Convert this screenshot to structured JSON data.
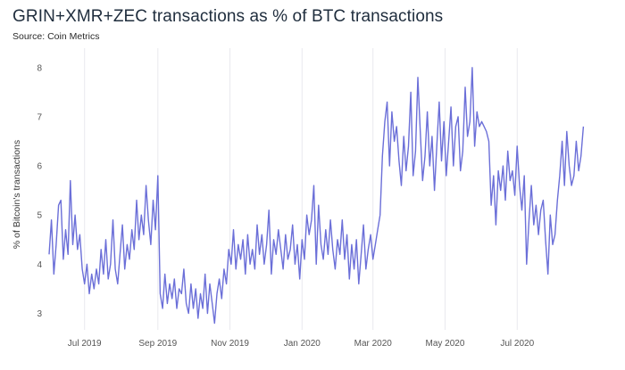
{
  "title": "GRIN+XMR+ZEC transactions as % of BTC transactions",
  "subtitle": "Source: Coin Metrics",
  "colors": {
    "series": "#6b6fd8",
    "grid": "#e9e9ee",
    "text": "#1f2d3d"
  },
  "chart_data": {
    "type": "line",
    "title": "GRIN+XMR+ZEC transactions as % of BTC transactions",
    "xlabel": "",
    "ylabel": "% of Bitcoin's transactions",
    "xlim": [
      "2019-06-01",
      "2020-08-31"
    ],
    "ylim": [
      2.7,
      8.25
    ],
    "yticks": [
      3,
      4,
      5,
      6,
      7,
      8
    ],
    "xticks": [
      {
        "date": "2019-07-01",
        "label": "Jul 2019"
      },
      {
        "date": "2019-09-01",
        "label": "Sep 2019"
      },
      {
        "date": "2019-11-01",
        "label": "Nov 2019"
      },
      {
        "date": "2020-01-01",
        "label": "Jan 2020"
      },
      {
        "date": "2020-03-01",
        "label": "Mar 2020"
      },
      {
        "date": "2020-05-01",
        "label": "May 2020"
      },
      {
        "date": "2020-07-01",
        "label": "Jul 2020"
      }
    ],
    "grid": "vertical",
    "series": [
      {
        "x": [
          "2019-06-01",
          "2019-06-03",
          "2019-06-05",
          "2019-06-07",
          "2019-06-09",
          "2019-06-11",
          "2019-06-13",
          "2019-06-15",
          "2019-06-17",
          "2019-06-19",
          "2019-06-21",
          "2019-06-23",
          "2019-06-25",
          "2019-06-27",
          "2019-06-29",
          "2019-07-01",
          "2019-07-03",
          "2019-07-05",
          "2019-07-07",
          "2019-07-09",
          "2019-07-11",
          "2019-07-13",
          "2019-07-15",
          "2019-07-17",
          "2019-07-19",
          "2019-07-21",
          "2019-07-23",
          "2019-07-25",
          "2019-07-27",
          "2019-07-29",
          "2019-07-31",
          "2019-08-02",
          "2019-08-04",
          "2019-08-06",
          "2019-08-08",
          "2019-08-10",
          "2019-08-12",
          "2019-08-14",
          "2019-08-16",
          "2019-08-18",
          "2019-08-20",
          "2019-08-22",
          "2019-08-24",
          "2019-08-26",
          "2019-08-28",
          "2019-08-30",
          "2019-09-01",
          "2019-09-03",
          "2019-09-05",
          "2019-09-07",
          "2019-09-09",
          "2019-09-11",
          "2019-09-13",
          "2019-09-15",
          "2019-09-17",
          "2019-09-19",
          "2019-09-21",
          "2019-09-23",
          "2019-09-25",
          "2019-09-27",
          "2019-09-29",
          "2019-10-01",
          "2019-10-03",
          "2019-10-05",
          "2019-10-07",
          "2019-10-09",
          "2019-10-11",
          "2019-10-13",
          "2019-10-15",
          "2019-10-17",
          "2019-10-19",
          "2019-10-21",
          "2019-10-23",
          "2019-10-25",
          "2019-10-27",
          "2019-10-29",
          "2019-10-31",
          "2019-11-02",
          "2019-11-04",
          "2019-11-06",
          "2019-11-08",
          "2019-11-10",
          "2019-11-12",
          "2019-11-14",
          "2019-11-16",
          "2019-11-18",
          "2019-11-20",
          "2019-11-22",
          "2019-11-24",
          "2019-11-26",
          "2019-11-28",
          "2019-11-30",
          "2019-12-02",
          "2019-12-04",
          "2019-12-06",
          "2019-12-08",
          "2019-12-10",
          "2019-12-12",
          "2019-12-14",
          "2019-12-16",
          "2019-12-18",
          "2019-12-20",
          "2019-12-22",
          "2019-12-24",
          "2019-12-26",
          "2019-12-28",
          "2019-12-30",
          "2020-01-01",
          "2020-01-03",
          "2020-01-05",
          "2020-01-07",
          "2020-01-09",
          "2020-01-11",
          "2020-01-13",
          "2020-01-15",
          "2020-01-17",
          "2020-01-19",
          "2020-01-21",
          "2020-01-23",
          "2020-01-25",
          "2020-01-27",
          "2020-01-29",
          "2020-01-31",
          "2020-02-02",
          "2020-02-04",
          "2020-02-06",
          "2020-02-08",
          "2020-02-10",
          "2020-02-12",
          "2020-02-14",
          "2020-02-16",
          "2020-02-18",
          "2020-02-20",
          "2020-02-22",
          "2020-02-24",
          "2020-02-26",
          "2020-02-28",
          "2020-03-01",
          "2020-03-03",
          "2020-03-05",
          "2020-03-07",
          "2020-03-09",
          "2020-03-11",
          "2020-03-13",
          "2020-03-15",
          "2020-03-17",
          "2020-03-19",
          "2020-03-21",
          "2020-03-23",
          "2020-03-25",
          "2020-03-27",
          "2020-03-29",
          "2020-03-31",
          "2020-04-02",
          "2020-04-04",
          "2020-04-06",
          "2020-04-08",
          "2020-04-10",
          "2020-04-12",
          "2020-04-14",
          "2020-04-16",
          "2020-04-18",
          "2020-04-20",
          "2020-04-22",
          "2020-04-24",
          "2020-04-26",
          "2020-04-28",
          "2020-04-30",
          "2020-05-02",
          "2020-05-04",
          "2020-05-06",
          "2020-05-08",
          "2020-05-10",
          "2020-05-12",
          "2020-05-14",
          "2020-05-16",
          "2020-05-18",
          "2020-05-20",
          "2020-05-22",
          "2020-05-24",
          "2020-05-26",
          "2020-05-28",
          "2020-05-30",
          "2020-06-01",
          "2020-06-03",
          "2020-06-05",
          "2020-06-07",
          "2020-06-09",
          "2020-06-11",
          "2020-06-13",
          "2020-06-15",
          "2020-06-17",
          "2020-06-19",
          "2020-06-21",
          "2020-06-23",
          "2020-06-25",
          "2020-06-27",
          "2020-06-29",
          "2020-07-01",
          "2020-07-03",
          "2020-07-05",
          "2020-07-07",
          "2020-07-09",
          "2020-07-11",
          "2020-07-13",
          "2020-07-15",
          "2020-07-17",
          "2020-07-19",
          "2020-07-21",
          "2020-07-23",
          "2020-07-25",
          "2020-07-27",
          "2020-07-29",
          "2020-07-31",
          "2020-08-02",
          "2020-08-04",
          "2020-08-06",
          "2020-08-08",
          "2020-08-10",
          "2020-08-12",
          "2020-08-14",
          "2020-08-16",
          "2020-08-18",
          "2020-08-20",
          "2020-08-22",
          "2020-08-24",
          "2020-08-26"
        ],
        "values": [
          4.2,
          4.9,
          3.8,
          4.4,
          5.2,
          5.3,
          4.1,
          4.7,
          4.2,
          5.7,
          4.4,
          5.0,
          4.3,
          4.6,
          3.9,
          3.6,
          4.0,
          3.4,
          3.8,
          3.5,
          3.9,
          3.6,
          4.3,
          3.8,
          4.5,
          3.7,
          4.0,
          4.9,
          3.9,
          3.6,
          4.2,
          4.8,
          3.9,
          4.4,
          4.1,
          4.7,
          4.3,
          5.3,
          4.5,
          5.0,
          4.6,
          5.6,
          4.9,
          4.4,
          5.3,
          4.7,
          5.8,
          3.4,
          3.1,
          3.8,
          3.2,
          3.6,
          3.3,
          3.7,
          3.1,
          3.5,
          3.4,
          3.9,
          3.2,
          3.0,
          3.6,
          3.1,
          3.5,
          2.9,
          3.4,
          3.1,
          3.8,
          3.0,
          3.6,
          3.2,
          2.8,
          3.4,
          3.7,
          3.3,
          3.9,
          3.6,
          4.3,
          4.0,
          4.7,
          3.9,
          4.4,
          4.1,
          4.5,
          3.8,
          4.6,
          4.0,
          4.3,
          3.9,
          4.8,
          4.2,
          4.6,
          4.0,
          4.4,
          5.1,
          3.8,
          4.5,
          4.2,
          4.7,
          4.3,
          3.9,
          4.6,
          4.1,
          4.3,
          4.8,
          4.0,
          4.4,
          3.7,
          4.5,
          4.1,
          5.0,
          4.6,
          4.9,
          5.6,
          4.0,
          5.2,
          4.4,
          4.1,
          4.7,
          4.2,
          4.9,
          4.3,
          3.9,
          4.5,
          4.2,
          4.9,
          4.1,
          4.6,
          3.7,
          4.4,
          3.9,
          4.5,
          3.6,
          4.2,
          4.8,
          3.9,
          4.3,
          4.6,
          4.1,
          4.4,
          4.7,
          5.0,
          6.2,
          6.9,
          7.3,
          6.0,
          7.1,
          6.5,
          6.8,
          6.1,
          5.6,
          6.6,
          5.9,
          6.4,
          7.5,
          5.8,
          6.3,
          7.8,
          6.7,
          5.7,
          6.2,
          7.1,
          6.0,
          6.6,
          5.5,
          6.4,
          7.3,
          6.1,
          6.9,
          5.8,
          6.5,
          7.2,
          6.0,
          6.8,
          7.0,
          5.9,
          6.3,
          7.6,
          6.6,
          6.9,
          8.0,
          6.4,
          7.1,
          6.8,
          6.9,
          6.8,
          6.7,
          6.5,
          5.2,
          5.8,
          4.8,
          5.9,
          5.5,
          6.0,
          5.3,
          6.3,
          5.7,
          5.9,
          5.4,
          6.4,
          5.6,
          5.1,
          5.8,
          4.0,
          4.9,
          5.6,
          4.8,
          5.2,
          4.6,
          5.1,
          5.3,
          4.5,
          3.8,
          5.0,
          4.4,
          4.6,
          5.3,
          5.8,
          6.5,
          5.6,
          6.7,
          6.0,
          5.6,
          5.8,
          6.5,
          5.9,
          6.2,
          6.8
        ]
      }
    ]
  }
}
